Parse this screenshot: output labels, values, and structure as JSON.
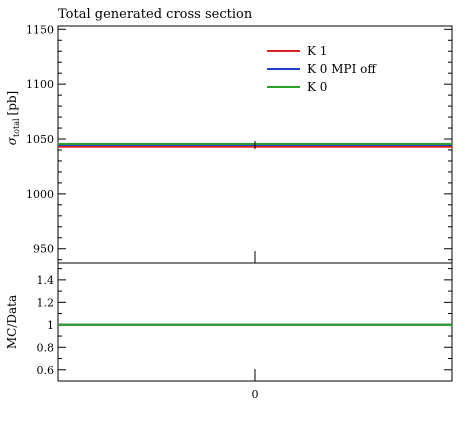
{
  "chart_data": [
    {
      "type": "line",
      "title": "Total generated cross section",
      "ylabel_symbol": "σ",
      "ylabel_subscript": "total",
      "ylabel_unit": "[pb]",
      "ylim": [
        937,
        1153
      ],
      "yticks": [
        950,
        1000,
        1050,
        1100,
        1150
      ],
      "x": [
        0
      ],
      "xlim": [
        -0.5,
        0.5
      ],
      "legend_position": "top-right",
      "series": [
        {
          "name": "K 1",
          "color": "#dd2222",
          "values": [
            1043
          ]
        },
        {
          "name": "K 0 MPI off",
          "color": "#1f3fcf",
          "values": [
            1044.5
          ]
        },
        {
          "name": "K 0",
          "color": "#2aa02a",
          "values": [
            1045.5
          ]
        }
      ]
    },
    {
      "type": "line",
      "ylabel": "MC/Data",
      "ylim": [
        0.5,
        1.55
      ],
      "yticks": [
        0.6,
        0.8,
        1,
        1.2,
        1.4
      ],
      "ytick_labels": [
        "0.6",
        "0.8",
        "1",
        "1.2",
        "1.4"
      ],
      "x": [
        0
      ],
      "xlim": [
        -0.5,
        0.5
      ],
      "xtick_labels": [
        "0"
      ],
      "series": [
        {
          "name": "K 1",
          "color": "#dd2222",
          "values": [
            1.0
          ]
        },
        {
          "name": "K 0 MPI off",
          "color": "#1f3fcf",
          "values": [
            1.0
          ]
        },
        {
          "name": "K 0",
          "color": "#2aa02a",
          "values": [
            1.0
          ]
        }
      ]
    }
  ]
}
